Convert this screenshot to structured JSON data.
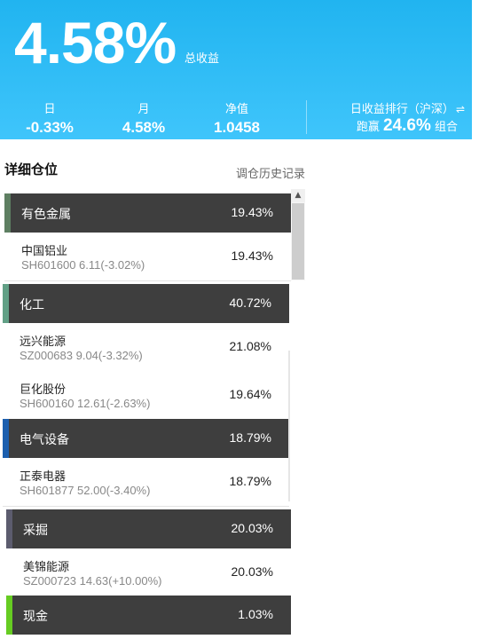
{
  "header": {
    "total_return": "4.58%",
    "total_return_label": "总收益",
    "stats": [
      {
        "label": "日",
        "value": "-0.33%"
      },
      {
        "label": "月",
        "value": "4.58%"
      },
      {
        "label": "净值",
        "value": "1.0458"
      }
    ],
    "rank": {
      "label": "日收益排行（沪深）",
      "prefix": "跑赢",
      "value": "24.6%",
      "suffix": "组合",
      "icon": "swap-icon"
    }
  },
  "holdings": {
    "title": "详细仓位",
    "history_link": "调仓历史记录",
    "sectors": [
      {
        "name": "有色金属",
        "pct": "19.43%",
        "color": "#5e7f62",
        "stocks": [
          {
            "name": "中国铝业",
            "code": "SH601600 6.11(-3.02%)",
            "pct": "19.43%"
          }
        ]
      },
      {
        "name": "化工",
        "pct": "40.72%",
        "color": "#62a086",
        "stocks": [
          {
            "name": "远兴能源",
            "code": "SZ000683 9.04(-3.32%)",
            "pct": "21.08%"
          },
          {
            "name": "巨化股份",
            "code": "SH600160 12.61(-2.63%)",
            "pct": "19.64%"
          }
        ]
      },
      {
        "name": "电气设备",
        "pct": "18.79%",
        "color": "#1c5fae",
        "stocks": [
          {
            "name": "正泰电器",
            "code": "SH601877 52.00(-3.40%)",
            "pct": "18.79%"
          }
        ]
      },
      {
        "name": "采掘",
        "pct": "20.03%",
        "color": "#5c5c6e",
        "stocks": [
          {
            "name": "美锦能源",
            "code": "SZ000723 14.63(+10.00%)",
            "pct": "20.03%"
          }
        ]
      },
      {
        "name": "现金",
        "pct": "1.03%",
        "color": "#66cc22",
        "stocks": []
      }
    ]
  }
}
